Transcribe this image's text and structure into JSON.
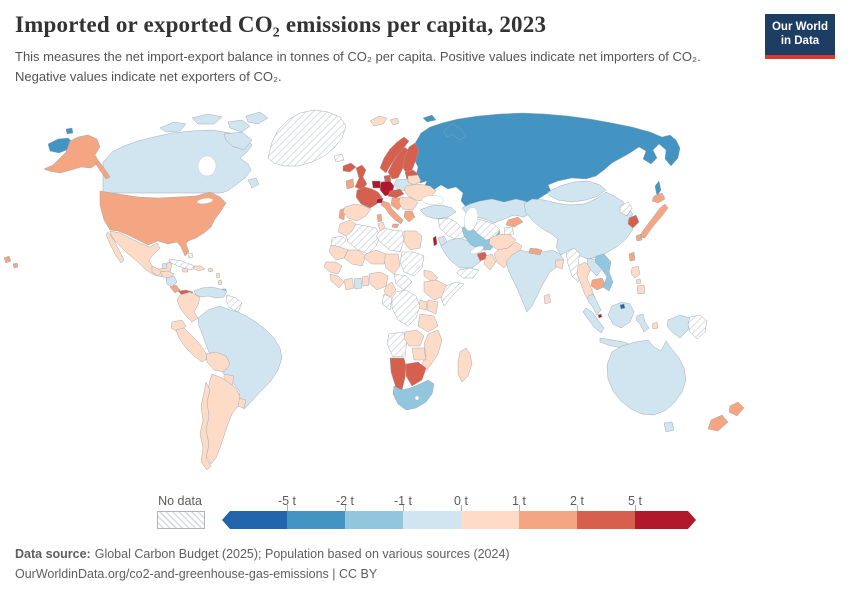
{
  "header": {
    "title": "Imported or exported CO₂ emissions per capita, 2023",
    "subtitle": "This measures the net import-export balance in tonnes of CO₂ per capita. Positive values indicate net importers of CO₂. Negative values indicate net exporters of CO₂.",
    "logo": {
      "line1": "Our World",
      "line2": "in Data",
      "bg_color": "#1d3d63",
      "accent_color": "#d93a2d"
    }
  },
  "legend": {
    "no_data_label": "No data",
    "ticks": [
      "-5 t",
      "-2 t",
      "-1 t",
      "0 t",
      "1 t",
      "2 t",
      "5 t"
    ]
  },
  "footer": {
    "source_label": "Data source:",
    "source_text": "Global Carbon Budget (2025); Population based on various sources (2024)",
    "link_text": "OurWorldinData.org/co2-and-greenhouse-gas-emissions",
    "license_suffix": " | CC BY"
  },
  "chart_data": {
    "type": "choropleth-map",
    "title": "Imported or exported CO₂ emissions per capita, 2023",
    "unit": "tonnes of CO₂ per capita",
    "legend_ticks": [
      "-5 t",
      "-2 t",
      "-1 t",
      "0 t",
      "1 t",
      "2 t",
      "5 t"
    ],
    "bins": [
      {
        "id": "lt-m5",
        "label": "less than -5 t",
        "color": "#2166ac"
      },
      {
        "id": "m5-m2",
        "label": "-5 t to -2 t",
        "color": "#4393c3"
      },
      {
        "id": "m2-m1",
        "label": "-2 t to -1 t",
        "color": "#92c5de"
      },
      {
        "id": "m1-0",
        "label": "-1 t to 0 t",
        "color": "#d1e5f0"
      },
      {
        "id": "0-1",
        "label": "0 t to 1 t",
        "color": "#fddbc7"
      },
      {
        "id": "1-2",
        "label": "1 t to 2 t",
        "color": "#f4a582"
      },
      {
        "id": "2-5",
        "label": "2 t to 5 t",
        "color": "#d6604d"
      },
      {
        "id": "gt5",
        "label": "more than 5 t",
        "color": "#b2182b"
      },
      {
        "id": "no-data",
        "label": "No data",
        "color": "hatched"
      }
    ],
    "countries": {
      "russia": "m5-m2",
      "united-states": "1-2",
      "canada": "m1-0",
      "greenland": "no-data",
      "iceland": "2-5",
      "mexico": "0-1",
      "belize": "m1-0",
      "guatemala": "0-1",
      "honduras": "0-1",
      "nicaragua": "m1-0",
      "costa-rica": "1-2",
      "panama": "2-5",
      "cuba": "no-data",
      "bahamas": "no-data",
      "jamaica": "0-1",
      "hispaniola": "0-1",
      "puerto-rico": "0-1",
      "lesser-antilles": "0-1",
      "trinidad-and-tobago": "m2-m1",
      "venezuela": "m1-0",
      "colombia": "0-1",
      "guyana-suriname": "no-data",
      "ecuador": "0-1",
      "peru": "0-1",
      "brazil": "m1-0",
      "bolivia": "0-1",
      "paraguay": "0-1",
      "uruguay": "0-1",
      "argentina": "0-1",
      "chile": "0-1",
      "norway": "2-5",
      "sweden": "2-5",
      "finland": "2-5",
      "denmark": "2-5",
      "baltics": "2-5",
      "united-kingdom": "2-5",
      "ireland": "1-2",
      "benelux": "gt5",
      "germany": "gt5",
      "poland": "m1-0",
      "belarus": "0-1",
      "ukraine": "0-1",
      "france": "2-5",
      "switzerland": "gt5",
      "austria-czechia": "2-5",
      "balkans": "1-2",
      "romania-bulgaria": "0-1",
      "italy": "1-2",
      "greece": "1-2",
      "portugal": "1-2",
      "spain": "0-1",
      "svalbard": "0-1",
      "turkey": "m1-0",
      "syria-iraq": "no-data",
      "israel": "gt5",
      "jordan": "m1-0",
      "saudi-arabia": "m1-0",
      "iran": "m2-m1",
      "uae-qatar": "2-5",
      "oman": "0-1",
      "yemen": "no-data",
      "kazakhstan": "m1-0",
      "uzbekistan-turkmenistan": "no-data",
      "kyrgyzstan": "1-2",
      "tajikistan": "no-data",
      "afghanistan": "0-1",
      "pakistan": "0-1",
      "india": "m1-0",
      "nepal": "1-2",
      "bangladesh": "0-1",
      "sri-lanka": "0-1",
      "mongolia": "m1-0",
      "china": "m1-0",
      "north-korea": "no-data",
      "south-korea": "2-5",
      "japan": "1-2",
      "taiwan": "1-2",
      "myanmar": "no-data",
      "thailand": "0-1",
      "laos": "m1-0",
      "cambodia": "1-2",
      "vietnam": "m2-m1",
      "philippines": "0-1",
      "malaysia": "m1-0",
      "singapore": "gt5",
      "brunei": "lt-m5",
      "indonesia": "m1-0",
      "indonesia-east": "0-1",
      "papua-new-guinea": "no-data",
      "australia": "m1-0",
      "new-zealand": "1-2",
      "morocco": "0-1",
      "western-sahara": "no-data",
      "algeria": "no-data",
      "tunisia": "0-1",
      "libya": "no-data",
      "egypt": "0-1",
      "mauritania": "0-1",
      "mali": "0-1",
      "niger": "0-1",
      "chad": "0-1",
      "sudan": "no-data",
      "senegal-guinea": "0-1",
      "sierra-leone-liberia": "0-1",
      "cote-divoire": "0-1",
      "ghana": "m1-0",
      "togo-benin": "0-1",
      "nigeria": "0-1",
      "cameroon": "0-1",
      "central-african-republic": "no-data",
      "eritrea-djibouti": "0-1",
      "ethiopia": "0-1",
      "somalia": "no-data",
      "kenya": "0-1",
      "uganda": "0-1",
      "dr-congo": "no-data",
      "congo-gabon": "no-data",
      "tanzania": "0-1",
      "angola": "no-data",
      "zambia": "0-1",
      "mozambique": "0-1",
      "zimbabwe": "0-1",
      "namibia": "2-5",
      "botswana": "2-5",
      "south-africa": "m2-m1",
      "madagascar": "0-1"
    }
  }
}
